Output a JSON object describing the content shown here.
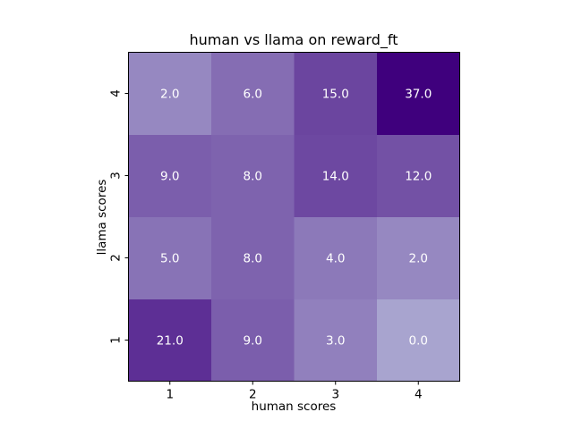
{
  "chart_data": {
    "type": "heatmap",
    "title": "human vs llama on reward_ft",
    "xlabel": "human scores",
    "ylabel": "llama scores",
    "x_categories": [
      "1",
      "2",
      "3",
      "4"
    ],
    "y_categories": [
      "1",
      "2",
      "3",
      "4"
    ],
    "values": [
      [
        21.0,
        9.0,
        3.0,
        0.0
      ],
      [
        5.0,
        8.0,
        4.0,
        2.0
      ],
      [
        9.0,
        8.0,
        14.0,
        12.0
      ],
      [
        2.0,
        6.0,
        15.0,
        37.0
      ]
    ],
    "value_labels": [
      [
        "21.0",
        "9.0",
        "3.0",
        "0.0"
      ],
      [
        "5.0",
        "8.0",
        "4.0",
        "2.0"
      ],
      [
        "9.0",
        "8.0",
        "14.0",
        "12.0"
      ],
      [
        "2.0",
        "6.0",
        "15.0",
        "37.0"
      ]
    ],
    "colormap": "Purples",
    "color_low": "#a8a4cf",
    "color_high": "#3f007d",
    "grid": false,
    "legend": "none"
  }
}
